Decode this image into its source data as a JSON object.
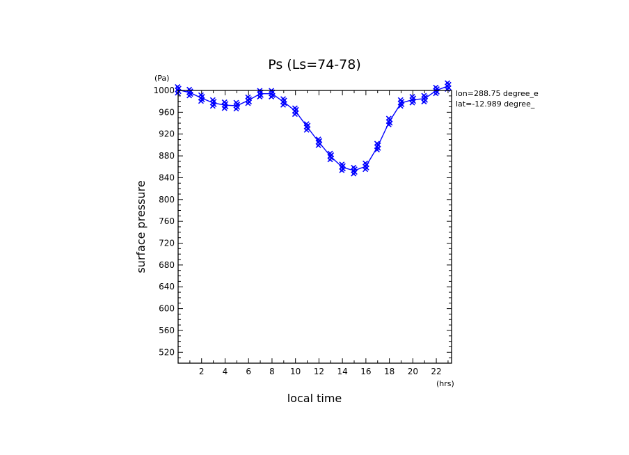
{
  "chart_data": {
    "type": "line",
    "title": "Ps (Ls=74-78)",
    "xlabel": "local time",
    "ylabel": "surface pressure",
    "x_unit": "(hrs)",
    "y_unit": "(Pa)",
    "xlim": [
      0,
      23.3
    ],
    "ylim": [
      500,
      1000
    ],
    "xticks": [
      2,
      4,
      6,
      8,
      10,
      12,
      14,
      16,
      18,
      20,
      22
    ],
    "yticks": [
      520,
      560,
      600,
      640,
      680,
      720,
      760,
      800,
      840,
      880,
      920,
      960,
      1000
    ],
    "grid": false,
    "annotations": [
      "lon=288.75 degree_e",
      "lat=-12.989 degree_"
    ],
    "series": [
      {
        "color": "#0000ff",
        "x": [
          0,
          1,
          2,
          3,
          4,
          5,
          6,
          7,
          8,
          9,
          10,
          11,
          12,
          13,
          14,
          15,
          16,
          17,
          18,
          19,
          20,
          21,
          22,
          23
        ],
        "values": [
          1001,
          996,
          986,
          977,
          973,
          972,
          982,
          994,
          994,
          979,
          962,
          933,
          905,
          879,
          859,
          853,
          861,
          897,
          943,
          977,
          983,
          985,
          1000,
          1008
        ]
      }
    ],
    "marker": "x",
    "scatter_offsets": [
      -6,
      -3,
      0,
      3,
      6
    ]
  }
}
